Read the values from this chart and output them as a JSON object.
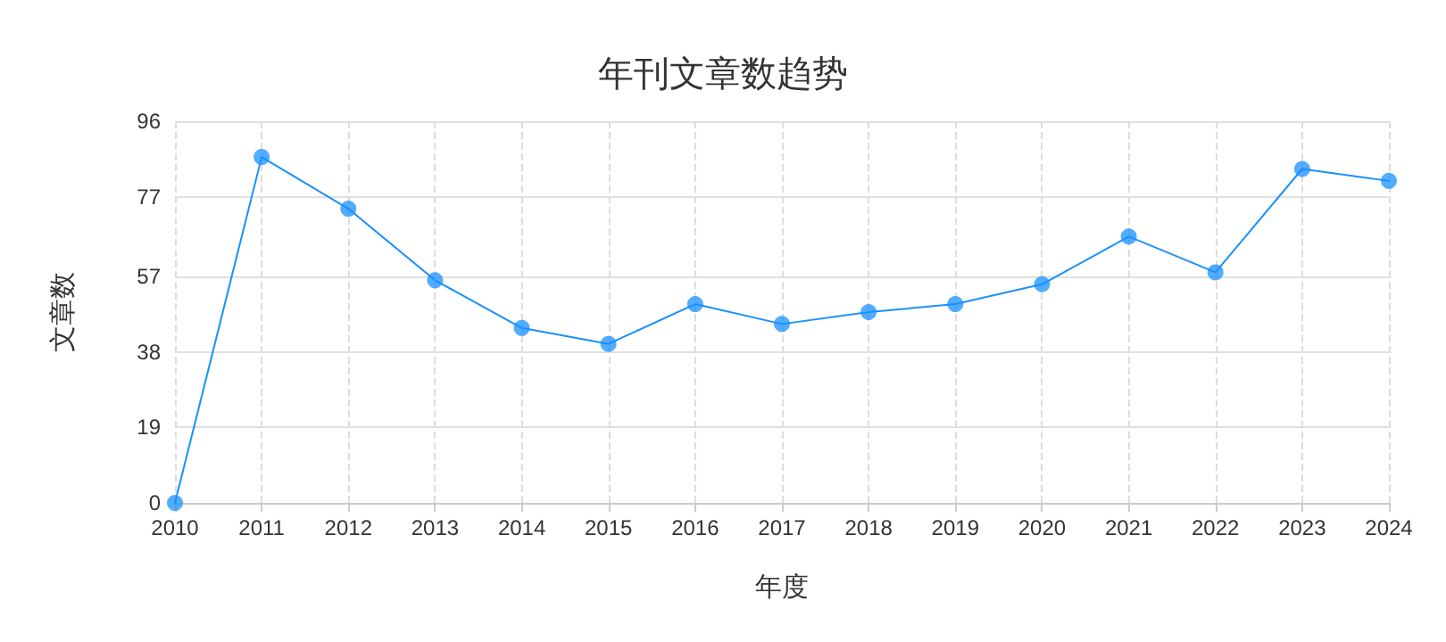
{
  "chart_data": {
    "type": "line",
    "title": "年刊文章数趋势",
    "xlabel": "年度",
    "ylabel": "文章数",
    "categories": [
      "2010",
      "2011",
      "2012",
      "2013",
      "2014",
      "2015",
      "2016",
      "2017",
      "2018",
      "2019",
      "2020",
      "2021",
      "2022",
      "2023",
      "2024"
    ],
    "series": [
      {
        "color": "#1890ff",
        "values": [
          0,
          87,
          74,
          56,
          44,
          40,
          50,
          45,
          48,
          50,
          55,
          67,
          58,
          84,
          81
        ]
      }
    ],
    "ylim": [
      0,
      96
    ],
    "yticks": [
      0,
      19,
      38,
      57,
      77,
      96
    ],
    "grid": true,
    "marker": "circle",
    "line_style": "solid"
  }
}
